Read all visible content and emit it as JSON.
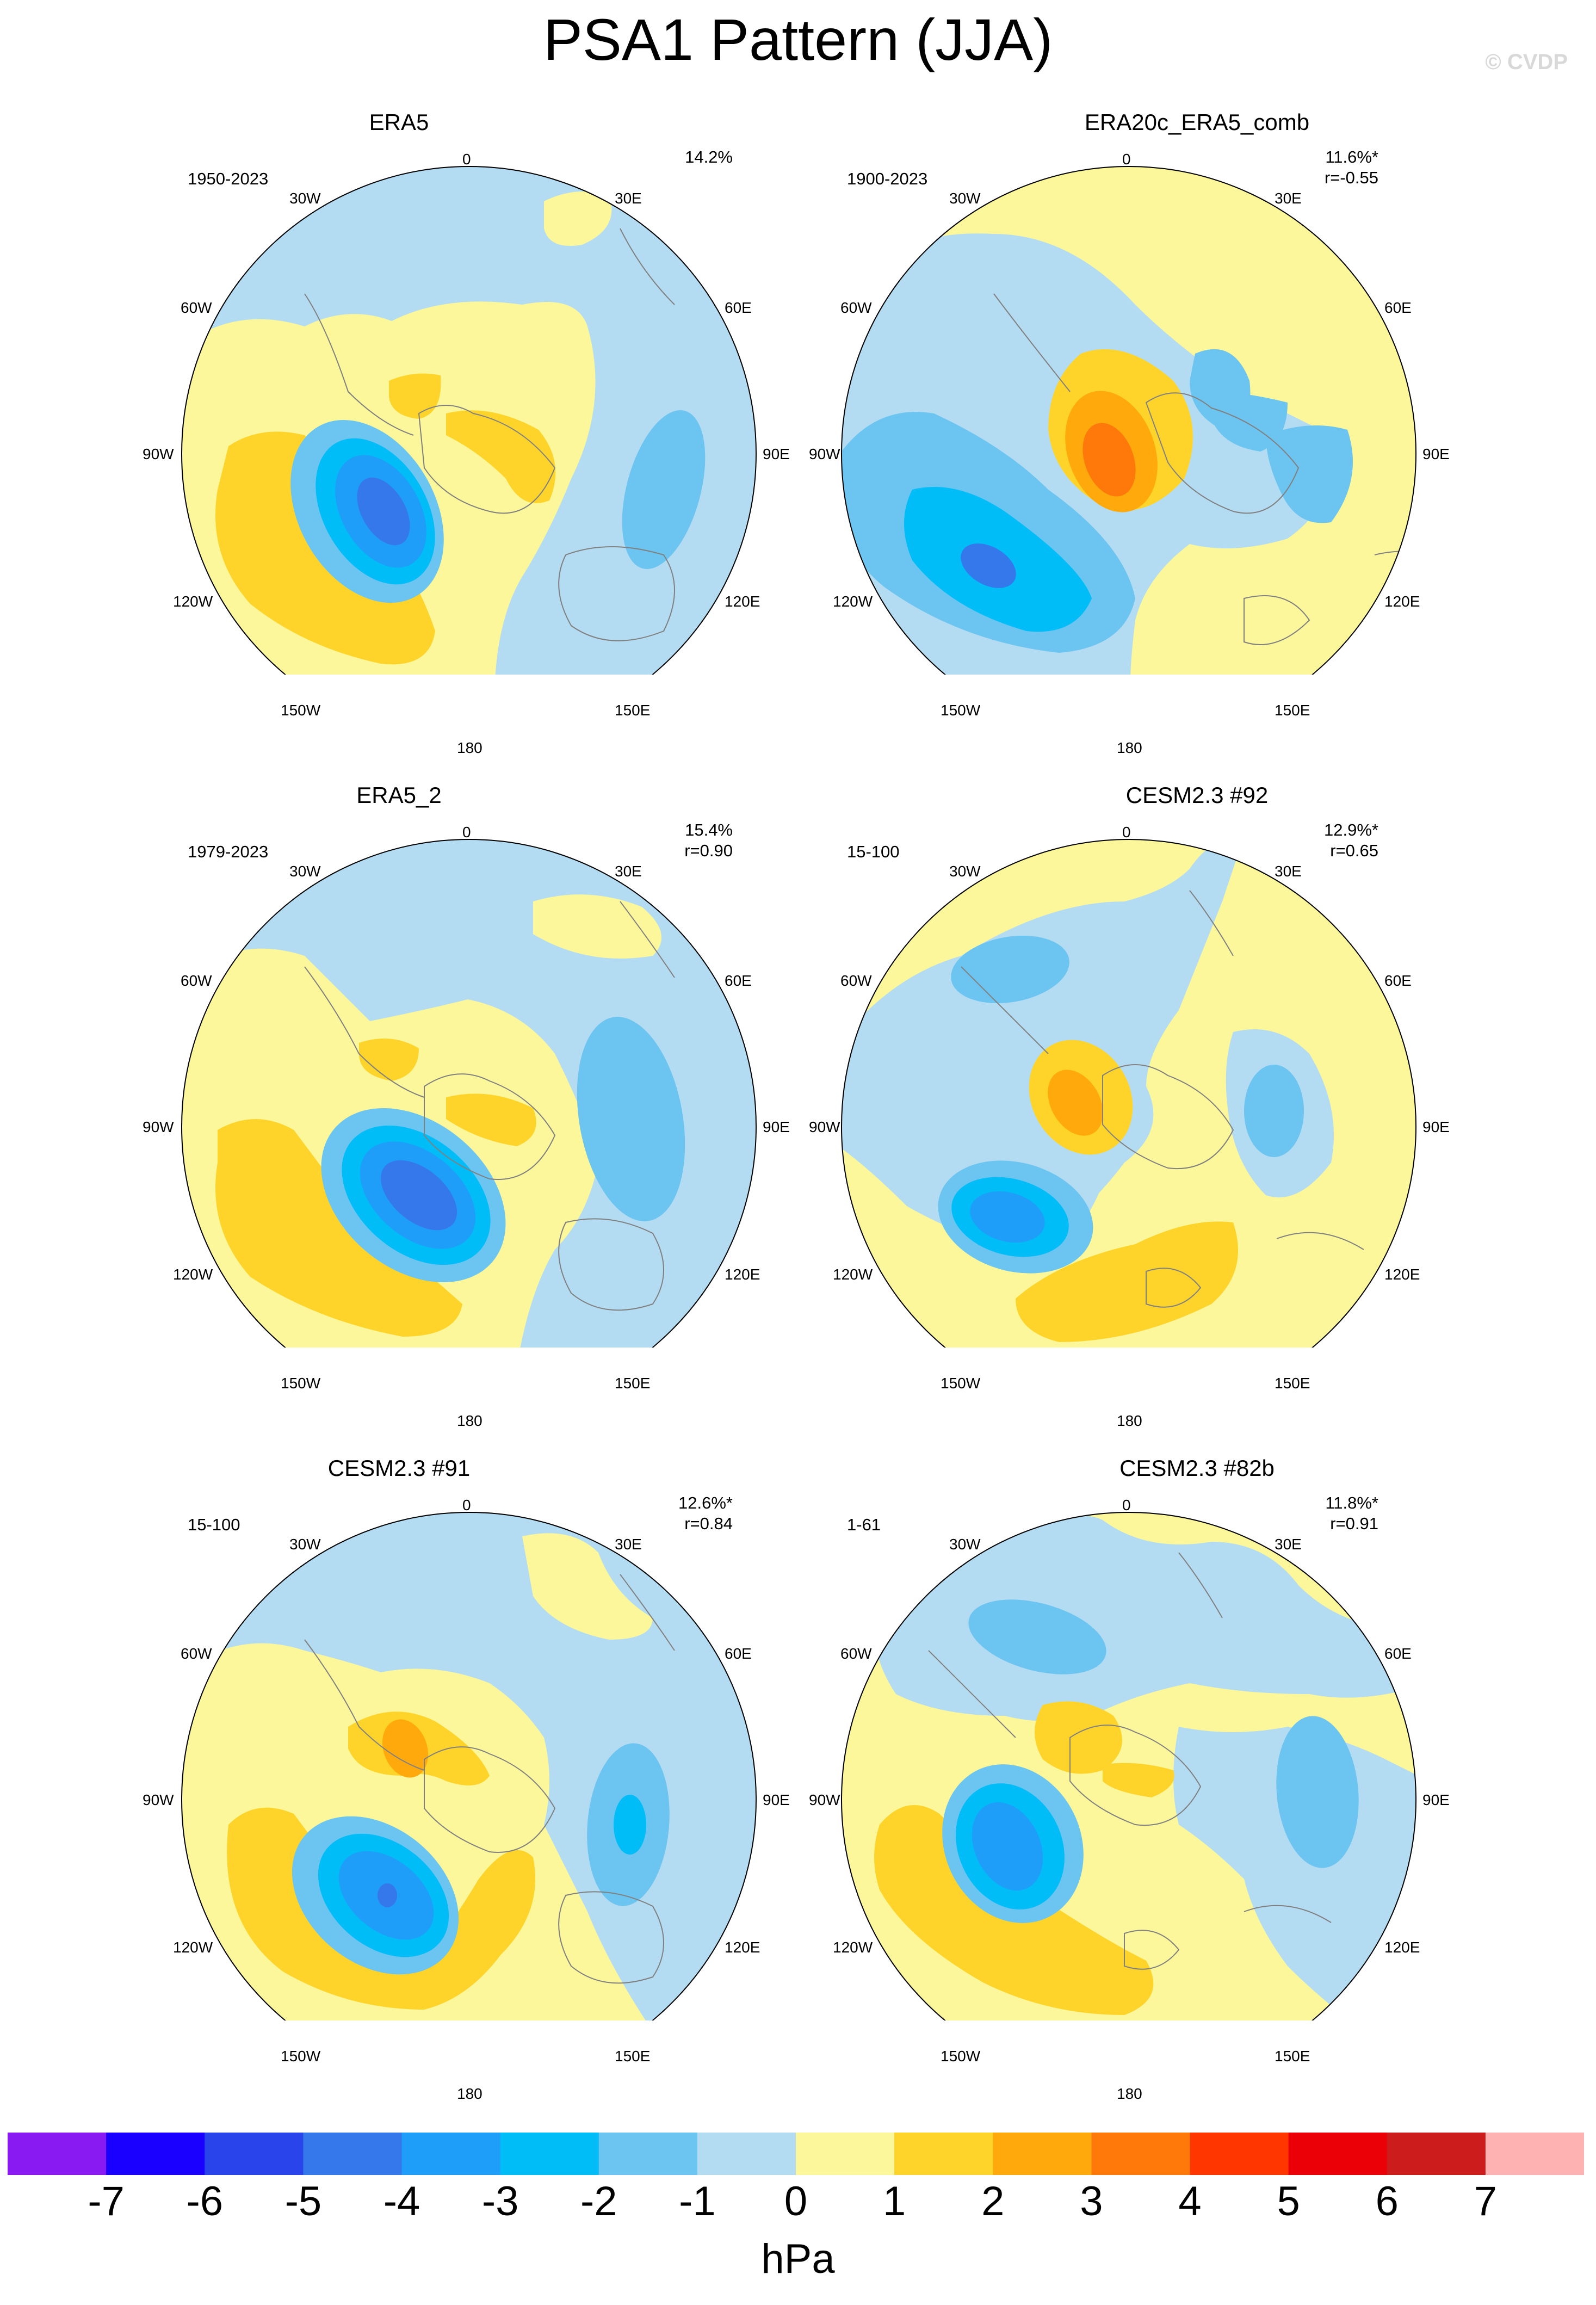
{
  "title": "PSA1 Pattern (JJA)",
  "watermark": "© CVDP",
  "colors": {
    "ocean_bg": "#b3dcf2",
    "land_line": "#808080",
    "levels": [
      "#8a1af2",
      "#1a00ff",
      "#2a44ec",
      "#3478ec",
      "#1e9ef8",
      "#00bdf8",
      "#6cc4f0",
      "#b3dcf2",
      "#fbf79a",
      "#ffd42a",
      "#ffa90c",
      "#ff790a",
      "#ff3600",
      "#eb0008",
      "#cc1c1c",
      "#ffb2b2"
    ]
  },
  "lon_labels": [
    "0",
    "30E",
    "60E",
    "90E",
    "120E",
    "150E",
    "180",
    "150W",
    "120W",
    "90W",
    "60W",
    "30W"
  ],
  "panels": [
    {
      "title": "ERA5",
      "period": "1950-2023",
      "percent": "14.2%",
      "corr": ""
    },
    {
      "title": "ERA20c_ERA5_comb",
      "period": "1900-2023",
      "percent": "11.6%*",
      "corr": "r=-0.55"
    },
    {
      "title": "ERA5_2",
      "period": "1979-2023",
      "percent": "15.4%",
      "corr": "r=0.90"
    },
    {
      "title": "CESM2.3 #92",
      "period": "15-100",
      "percent": "12.9%*",
      "corr": "r=0.65"
    },
    {
      "title": "CESM2.3 #91",
      "period": "15-100",
      "percent": "12.6%*",
      "corr": "r=0.84"
    },
    {
      "title": "CESM2.3 #82b",
      "period": "1-61",
      "percent": "11.8%*",
      "corr": "r=0.91"
    }
  ],
  "colorbar": {
    "ticks": [
      "-7",
      "-6",
      "-5",
      "-4",
      "-3",
      "-2",
      "-1",
      "0",
      "1",
      "2",
      "3",
      "4",
      "5",
      "6",
      "7"
    ],
    "units": "hPa"
  }
}
